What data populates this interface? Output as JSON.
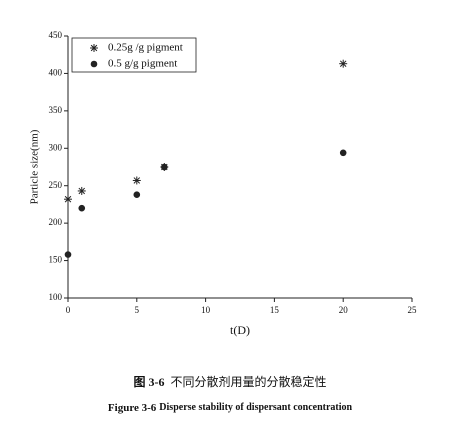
{
  "chart_data": {
    "type": "scatter",
    "x_label": "t(D)",
    "y_label": "Particle size(nm)",
    "x": [
      0,
      1,
      5,
      7,
      20
    ],
    "series": [
      {
        "name": "0.25g /g pigment",
        "marker": "asterisk",
        "color": "#222222",
        "values": [
          232,
          243,
          257,
          275,
          413
        ]
      },
      {
        "name": "0.5 g/g pigment",
        "marker": "circle",
        "color": "#222222",
        "values": [
          158,
          220,
          238,
          275,
          294
        ]
      }
    ],
    "xlim": [
      0,
      25
    ],
    "xticks": [
      0,
      5,
      10,
      15,
      20,
      25
    ],
    "ylim": [
      100,
      450
    ],
    "yticks": [
      100,
      150,
      200,
      250,
      300,
      350,
      400,
      450
    ],
    "legend": "top-left",
    "grid": false
  },
  "caption": {
    "cn_label": "图 3-6",
    "cn_text": "不同分散剂用量的分散稳定性",
    "en_label": "Figure 3-6",
    "en_text": "Disperse stability of dispersant concentration"
  }
}
